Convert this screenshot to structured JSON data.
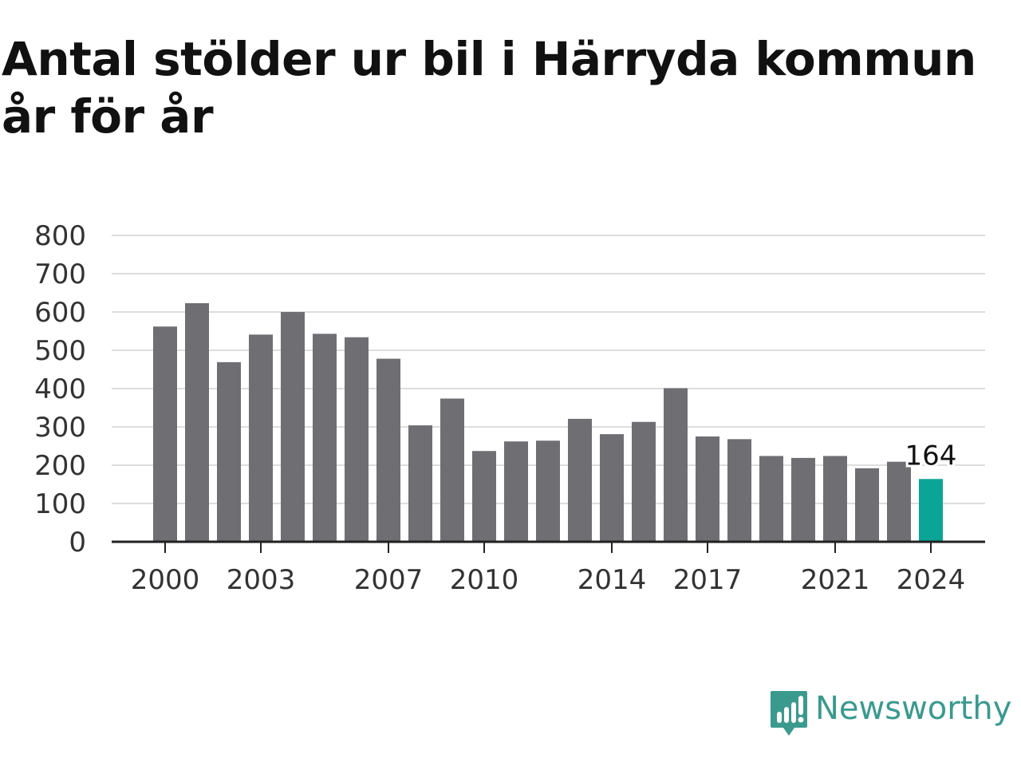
{
  "title_line1": "Antal stölder ur bil i Härryda kommun",
  "title_line2": "år för år",
  "logo_text": "Newsworthy",
  "colors": {
    "bar": "#6f6e73",
    "highlight": "#0aa596",
    "grid": "#dddddd",
    "axis": "#222222",
    "logo": "#3a9a8e"
  },
  "chart_data": {
    "type": "bar",
    "title": "Antal stölder ur bil i Härryda kommun år för år",
    "xlabel": "",
    "ylabel": "",
    "ylim": [
      0,
      800
    ],
    "yticks": [
      0,
      100,
      200,
      300,
      400,
      500,
      600,
      700,
      800
    ],
    "xtick_labels": [
      "2000",
      "2003",
      "2007",
      "2010",
      "2014",
      "2017",
      "2021",
      "2024"
    ],
    "grid": true,
    "highlight_label": "164",
    "categories": [
      "2000",
      "2001",
      "2002",
      "2003",
      "2004",
      "2005",
      "2006",
      "2007",
      "2008",
      "2009",
      "2010",
      "2011",
      "2012",
      "2013",
      "2014",
      "2015",
      "2016",
      "2017",
      "2018",
      "2019",
      "2020",
      "2021",
      "2022",
      "2023",
      "2024"
    ],
    "values": [
      562,
      623,
      469,
      541,
      600,
      543,
      534,
      478,
      304,
      374,
      237,
      262,
      264,
      321,
      281,
      313,
      401,
      275,
      268,
      224,
      219,
      224,
      192,
      209,
      164
    ],
    "highlight_category": "2024"
  }
}
